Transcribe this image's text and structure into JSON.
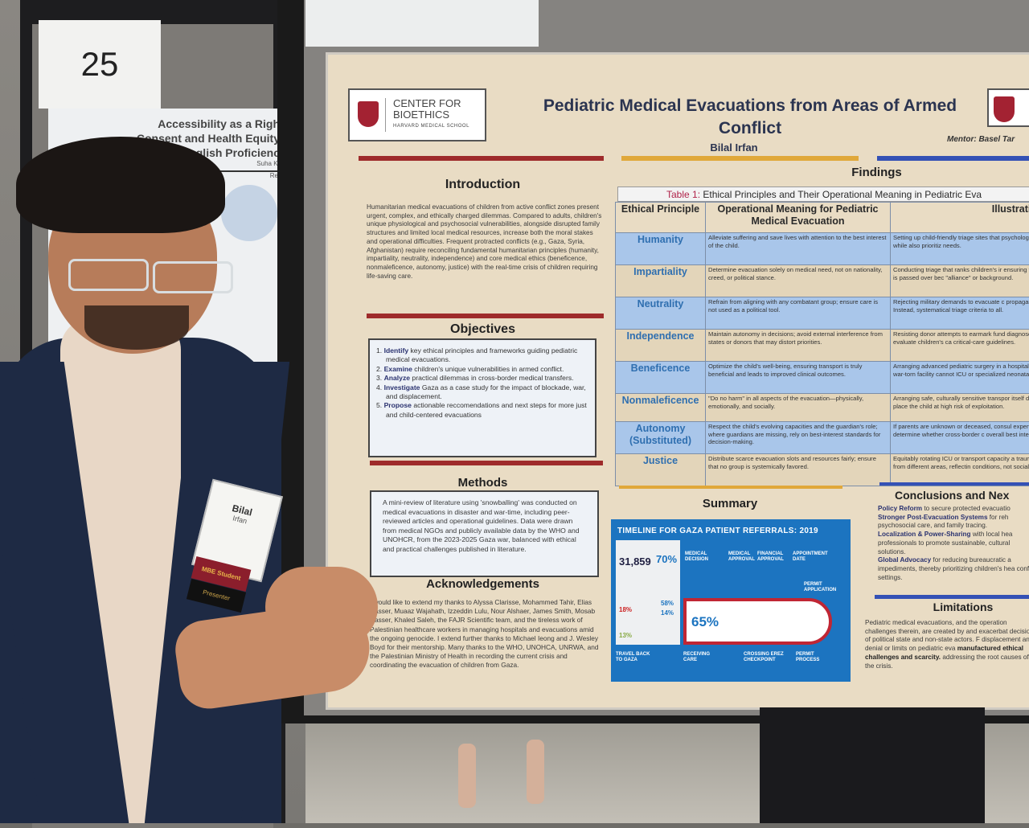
{
  "booth_number": "25",
  "neighbor_poster": {
    "title_lines": [
      "Accessibility as a Righ",
      "Consent and Health Equity",
      "English Proficienc"
    ],
    "author": "Suha Kh",
    "section": "Res"
  },
  "poster": {
    "logo": {
      "line1": "CENTER FOR",
      "line2": "BIOETHICS",
      "line3": "HARVARD MEDICAL SCHOOL"
    },
    "title": "Pediatric Medical Evacuations from Areas of Armed Conflict",
    "author": "Bilal Irfan",
    "mentor": "Mentor: Basel Tar",
    "introduction": {
      "heading": "Introduction",
      "text": "Humanitarian medical evacuations of children from active conflict zones present urgent, complex, and ethically charged dilemmas. Compared to adults, children's unique physiological and psychosocial vulnerabilities, alongside disrupted family structures and limited local medical resources, increase both the moral stakes and operational difficulties. Frequent protracted conflicts (e.g., Gaza, Syria, Afghanistan) require reconciling fundamental humanitarian principles (humanity, impartiality, neutrality, independence) and core medical ethics (beneficence, nonmaleficence, autonomy, justice) with the real-time crisis of children requiring life-saving care."
    },
    "objectives": {
      "heading": "Objectives",
      "items": [
        {
          "n": "1.",
          "verb": "Identify",
          "text": " key ethical principles and frameworks guiding pediatric medical evacuations."
        },
        {
          "n": "2.",
          "verb": "Examine",
          "text": " children's unique vulnerabilities in armed conflict."
        },
        {
          "n": "3.",
          "verb": "Analyze",
          "text": " practical dilemmas in cross-border medical transfers."
        },
        {
          "n": "4.",
          "verb": "Investigate",
          "text": " Gaza as a case study for the impact of blockade, war, and displacement."
        },
        {
          "n": "5.",
          "verb": "Propose",
          "text": " actionable reccomendations and next steps for more just and child-centered evacuations"
        }
      ]
    },
    "methods": {
      "heading": "Methods",
      "text": "A mini-review of literature using 'snowballing' was conducted on medical evacuations in disaster and war-time, including peer-reviewed articles and operational guidelines. Data were drawn from medical NGOs and publicly available data by the WHO and UNOHCR, from the 2023-2025 Gaza war, balanced with ethical and practical challenges published in literature."
    },
    "acknowledgements": {
      "heading": "Acknowledgements",
      "text": "I would like to extend my thanks to Alyssa Clarisse, Mohammed Tahir, Elias Nasser, Muaaz Wajahath, Izzeddin Lulu, Nour Alshaer, James Smith, Mosab Nasser, Khaled Saleh, the FAJR Scientific team, and the tireless work of Palestinian healthcare workers in managing hospitals and evacuations amid the ongoing genocide. I extend further thanks to Michael Ieong and J. Wesley Boyd for their mentorship. Many thanks to the WHO, UNOHCA, UNRWA, and the Palestinian Ministry of Health in recording the current crisis and coordinating the evacuation of children from Gaza."
    },
    "findings": {
      "heading": "Findings",
      "table_label": "Table 1:",
      "table_caption": " Ethical Principles and Their Operational Meaning in Pediatric Eva",
      "columns": [
        "Ethical Principle",
        "Operational Meaning for Pediatric Medical Evacuation",
        "Illustrative Exa"
      ],
      "rows": [
        {
          "principle": "Humanity",
          "meaning": "Alleviate suffering and save lives with attention to the best interest of the child.",
          "example": "Setting up child-friendly triage sites that psychological comfort while also prioritiz needs."
        },
        {
          "principle": "Impartiality",
          "meaning": "Determine evacuation solely on medical need, not on nationality, creed, or political stance.",
          "example": "Conducting triage that ranks children's ir ensuring that no child is passed over bec \"alliance\" or background."
        },
        {
          "principle": "Neutrality",
          "meaning": "Refrain from aligning with any combatant group; ensure care is not used as a political tool.",
          "example": "Rejecting military demands to evacuate c propaganda stunts. Instead, systematical triage criteria to all."
        },
        {
          "principle": "Independence",
          "meaning": "Maintain autonomy in decisions; avoid external interference from states or donors that may distort priorities.",
          "example": "Resisting donor attempts to earmark fund diagnoses. Instead, evaluate children's ca critical-care guidelines."
        },
        {
          "principle": "Beneficence",
          "meaning": "Optimize the child's well-being, ensuring transport is truly beneficial and leads to improved clinical outcomes.",
          "example": "Arranging advanced pediatric surgery in a hospital, if the local war-torn facility cannot ICU or specialized neonatal care."
        },
        {
          "principle": "Nonmaleficence",
          "meaning": "\"Do no harm\" in all aspects of the evacuation—physically, emotionally, and socially.",
          "example": "Arranging safe, culturally sensitive transpor itself does not place the child at high risk of exploitation."
        },
        {
          "principle": "Autonomy (Substituted)",
          "meaning": "Respect the child's evolving capacities and the guardian's role; where guardians are missing, rely on best-interest standards for decision-making.",
          "example": "If parents are unknown or deceased, consul experts to determine whether cross-border c overall best interest."
        },
        {
          "principle": "Justice",
          "meaning": "Distribute scarce evacuation slots and resources fairly; ensure that no group is systemically favored.",
          "example": "Equitably rotating ICU or transport capacity a trauma patients from different areas, reflectin conditions, not social origin."
        }
      ]
    },
    "summary": {
      "heading": "Summary",
      "infographic": {
        "title": "TIMELINE FOR GAZA PATIENT REFERRALS: 2019",
        "stat1": "31,859",
        "stat2": "70%",
        "stat3": "65%",
        "pct_a": "58%",
        "pct_b": "14%",
        "pct_c": "18%",
        "pct_d": "13%",
        "steps": [
          "MEDICAL DECISION",
          "MEDICAL APPROVAL",
          "FINANCIAL APPROVAL",
          "APPOINTMENT DATE",
          "PERMIT APPLICATION",
          "PERMIT PROCESS",
          "CROSSING EREZ CHECKPOINT",
          "RECEIVING CARE",
          "TRAVEL BACK TO GAZA"
        ]
      }
    },
    "conclusions": {
      "heading": "Conclusions and Nex",
      "items": [
        {
          "bold": "Policy Reform",
          "text": " to secure protected evacuatio"
        },
        {
          "bold": "Stronger Post-Evacuation Systems",
          "text": " for reh psychosocial care, and family tracing."
        },
        {
          "bold": "Localization & Power-Sharing",
          "text": " with local hea professionals to promote sustainable, cultural solutions."
        },
        {
          "bold": "Global Advocacy",
          "text": " for reducing bureaucratic a impediments, thereby prioritizing children's hea conflict settings."
        }
      ]
    },
    "limitations": {
      "heading": "Limitations",
      "text": "Pediatric medical evacuations, and the operation challenges therein, are created by and exacerbat decisions of political state and non-state actors. F displacement and denial or limits on pediatric eva",
      "bold": "manufactured ethical challenges and scarcity.",
      "text2": " addressing the root causes of the crisis."
    }
  },
  "badge": {
    "first": "Bilal",
    "last": "Irfan",
    "ribbon1": "MBE Student",
    "ribbon2": "Presenter"
  },
  "colors": {
    "poster_bg": "#e9dcc4",
    "red_bar": "#9e2b2b",
    "gold_bar": "#e0a83a",
    "blue_bar": "#3451b5",
    "table_blue": "#a9c6ea",
    "principle_text": "#2f6fb0",
    "jacket": "#1e2a44"
  }
}
